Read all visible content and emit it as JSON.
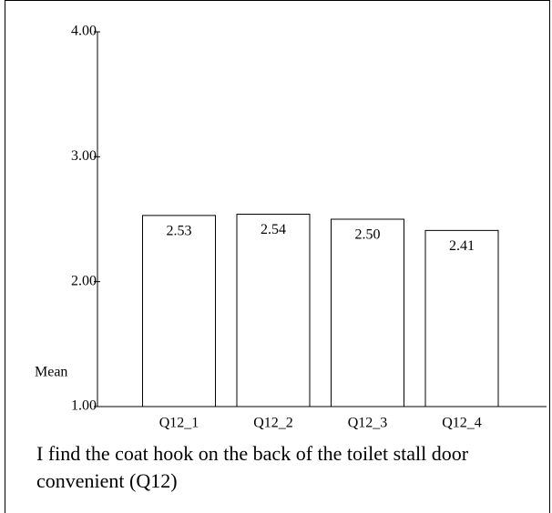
{
  "chart_data": {
    "type": "bar",
    "title": "I find the coat hook on the back of the toilet stall door convenient (Q12)",
    "y_label": "Mean",
    "categories": [
      "Q12_1",
      "Q12_2",
      "Q12_3",
      "Q12_4"
    ],
    "values": [
      2.53,
      2.54,
      2.5,
      2.41
    ],
    "value_labels": [
      "2.53",
      "2.54",
      "2.50",
      "2.41"
    ],
    "color": "#ffffff",
    "ylim": [
      1,
      4
    ],
    "yticks": [
      {
        "value": 1,
        "label": "1.00"
      },
      {
        "value": 2,
        "label": "2.00"
      },
      {
        "value": 3,
        "label": "3.00"
      },
      {
        "value": 4,
        "label": "4.00"
      }
    ],
    "grid": false
  }
}
